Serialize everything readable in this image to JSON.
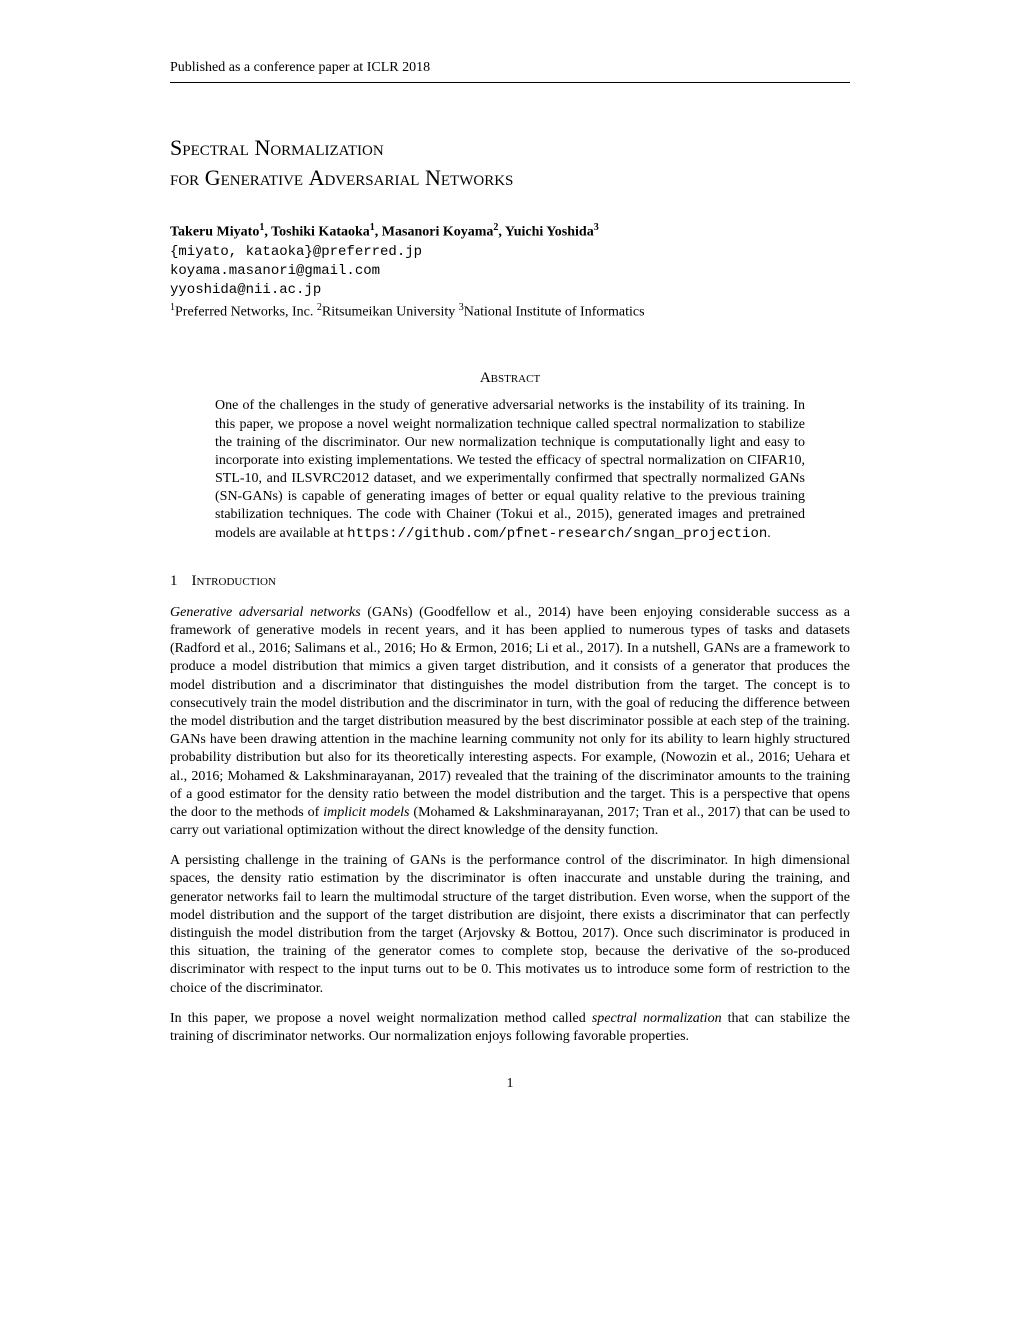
{
  "header": {
    "venue": "Published as a conference paper at ICLR 2018"
  },
  "title": {
    "line1_caps": "S",
    "line1_sc": "pectral ",
    "line1_caps2": "N",
    "line1_sc2": "ormalization",
    "line2_sc_pre": "for ",
    "line2_caps": "G",
    "line2_sc": "enerative ",
    "line2_caps2": "A",
    "line2_sc2": "dversarial ",
    "line2_caps3": "N",
    "line2_sc3": "etworks"
  },
  "authors": {
    "a1_name": "Takeru Miyato",
    "a1_sup": "1",
    "a2_name": "Toshiki Kataoka",
    "a2_sup": "1",
    "a3_name": "Masanori Koyama",
    "a3_sup": "2",
    "a4_name": "Yuichi Yoshida",
    "a4_sup": "3",
    "sep": ", "
  },
  "emails": {
    "line1": "{miyato, kataoka}@preferred.jp",
    "line2": "koyama.masanori@gmail.com",
    "line3": "yyoshida@nii.ac.jp"
  },
  "affiliations": {
    "sup1": "1",
    "aff1": "Preferred Networks, Inc. ",
    "sup2": "2",
    "aff2": "Ritsumeikan University ",
    "sup3": "3",
    "aff3": "National Institute of Informatics"
  },
  "abstract": {
    "heading": "Abstract",
    "text_part1": "One of the challenges in the study of generative adversarial networks is the instability of its training. In this paper, we propose a novel weight normalization technique called spectral normalization to stabilize the training of the discriminator. Our new normalization technique is computationally light and easy to incorporate into existing implementations. We tested the efficacy of spectral normalization on CIFAR10, STL-10, and ILSVRC2012 dataset, and we experimentally confirmed that spectrally normalized GANs (SN-GANs) is capable of generating images of better or equal quality relative to the previous training stabilization techniques. The code with Chainer (Tokui et al., 2015), generated images and pretrained models are available at ",
    "code_url": "https://github.com/pfnet-research/sngan_projection",
    "text_part2": "."
  },
  "section1": {
    "num": "1",
    "title": "Introduction"
  },
  "paragraphs": {
    "p1_italic": "Generative adversarial networks",
    "p1_rest": " (GANs) (Goodfellow et al., 2014) have been enjoying considerable success as a framework of generative models in recent years, and it has been applied to numerous types of tasks and datasets (Radford et al., 2016; Salimans et al., 2016; Ho & Ermon, 2016; Li et al., 2017). In a nutshell, GANs are a framework to produce a model distribution that mimics a given target distribution, and it consists of a generator that produces the model distribution and a discriminator that distinguishes the model distribution from the target. The concept is to consecutively train the model distribution and the discriminator in turn, with the goal of reducing the difference between the model distribution and the target distribution measured by the best discriminator possible at each step of the training. GANs have been drawing attention in the machine learning community not only for its ability to learn highly structured probability distribution but also for its theoretically interesting aspects. For example, (Nowozin et al., 2016; Uehara et al., 2016; Mohamed & Lakshminarayanan, 2017) revealed that the training of the discriminator amounts to the training of a good estimator for the density ratio between the model distribution and the target. This is a perspective that opens the door to the methods of ",
    "p1_italic2": "implicit models",
    "p1_rest2": " (Mohamed & Lakshminarayanan, 2017; Tran et al., 2017) that can be used to carry out variational optimization without the direct knowledge of the density function.",
    "p2": "A persisting challenge in the training of GANs is the performance control of the discriminator. In high dimensional spaces, the density ratio estimation by the discriminator is often inaccurate and unstable during the training, and generator networks fail to learn the multimodal structure of the target distribution. Even worse, when the support of the model distribution and the support of the target distribution are disjoint, there exists a discriminator that can perfectly distinguish the model distribution from the target (Arjovsky & Bottou, 2017). Once such discriminator is produced in this situation, the training of the generator comes to complete stop, because the derivative of the so-produced discriminator with respect to the input turns out to be 0. This motivates us to introduce some form of restriction to the choice of the discriminator.",
    "p3_part1": "In this paper, we propose a novel weight normalization method called ",
    "p3_italic": "spectral normalization",
    "p3_part2": " that can stabilize the training of discriminator networks. Our normalization enjoys following favorable properties."
  },
  "page_number": "1"
}
